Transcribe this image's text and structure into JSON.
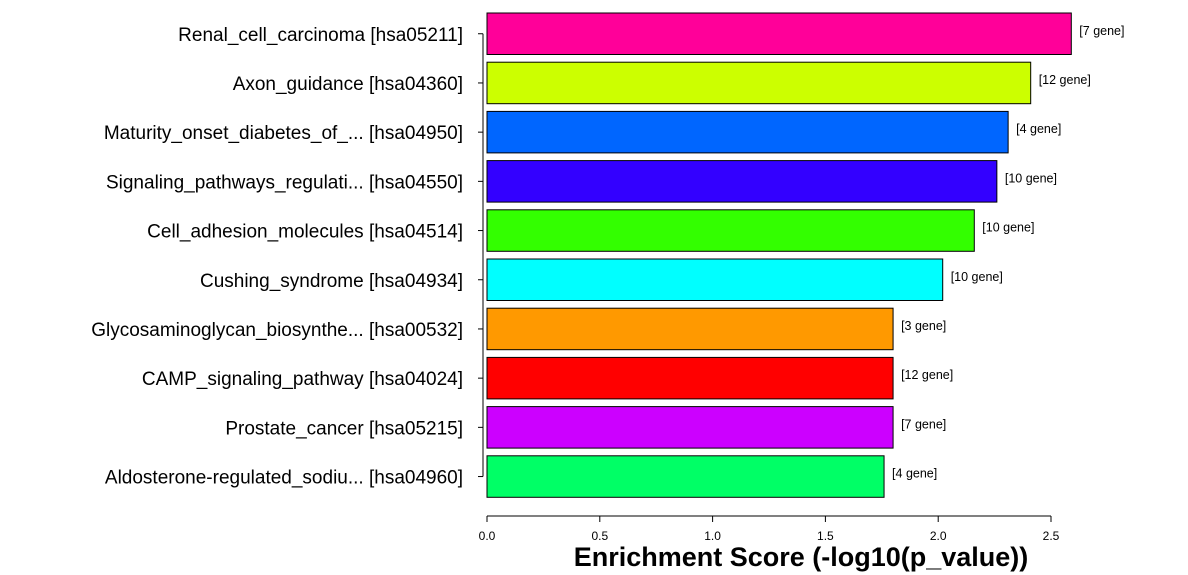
{
  "chart_data": {
    "type": "bar",
    "orientation": "horizontal",
    "categories": [
      "Renal_cell_carcinoma [hsa05211]",
      "Axon_guidance [hsa04360]",
      "Maturity_onset_diabetes_of_... [hsa04950]",
      "Signaling_pathways_regulati... [hsa04550]",
      "Cell_adhesion_molecules [hsa04514]",
      "Cushing_syndrome [hsa04934]",
      "Glycosaminoglycan_biosynthe... [hsa00532]",
      "CAMP_signaling_pathway [hsa04024]",
      "Prostate_cancer [hsa05215]",
      "Aldosterone-regulated_sodiu... [hsa04960]"
    ],
    "values": [
      2.59,
      2.41,
      2.31,
      2.26,
      2.16,
      2.02,
      1.8,
      1.8,
      1.8,
      1.76
    ],
    "bar_labels": [
      "[7 gene]",
      "[12 gene]",
      "[4 gene]",
      "[10 gene]",
      "[10 gene]",
      "[10 gene]",
      "[3 gene]",
      "[12 gene]",
      "[7 gene]",
      "[4 gene]"
    ],
    "colors": [
      "#ff0099",
      "#ccff00",
      "#0066ff",
      "#3300ff",
      "#33ff00",
      "#00ffff",
      "#ff9900",
      "#ff0000",
      "#cc00ff",
      "#00ff66"
    ],
    "xlabel": "Enrichment Score (-log10(p_value))",
    "xlim": [
      0,
      2.5
    ],
    "xticks": [
      "0.0",
      "0.5",
      "1.0",
      "1.5",
      "2.0",
      "2.5"
    ],
    "grid": false,
    "legend": "none"
  }
}
